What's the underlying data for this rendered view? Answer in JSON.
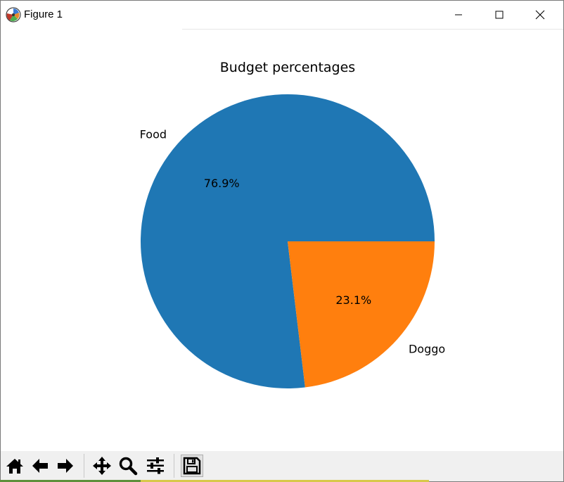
{
  "window": {
    "title": "Figure 1",
    "icon": "matplotlib-icon"
  },
  "toolbar": {
    "buttons": [
      {
        "name": "home-button",
        "icon": "home-icon"
      },
      {
        "name": "back-button",
        "icon": "arrow-left-icon"
      },
      {
        "name": "forward-button",
        "icon": "arrow-right-icon"
      },
      {
        "name": "pan-button",
        "icon": "move-icon"
      },
      {
        "name": "zoom-button",
        "icon": "zoom-icon"
      },
      {
        "name": "subplots-button",
        "icon": "sliders-icon"
      },
      {
        "name": "save-button",
        "icon": "floppy-disk-icon"
      }
    ]
  },
  "chart_data": {
    "type": "pie",
    "title": "Budget percentages",
    "labels": [
      "Food",
      "Doggo"
    ],
    "values": [
      76.9,
      23.1
    ],
    "pct_labels": [
      "76.9%",
      "23.1%"
    ],
    "colors": [
      "#1f77b4",
      "#ff7f0e"
    ],
    "start_angle_deg": 0,
    "direction": "counterclockwise"
  }
}
